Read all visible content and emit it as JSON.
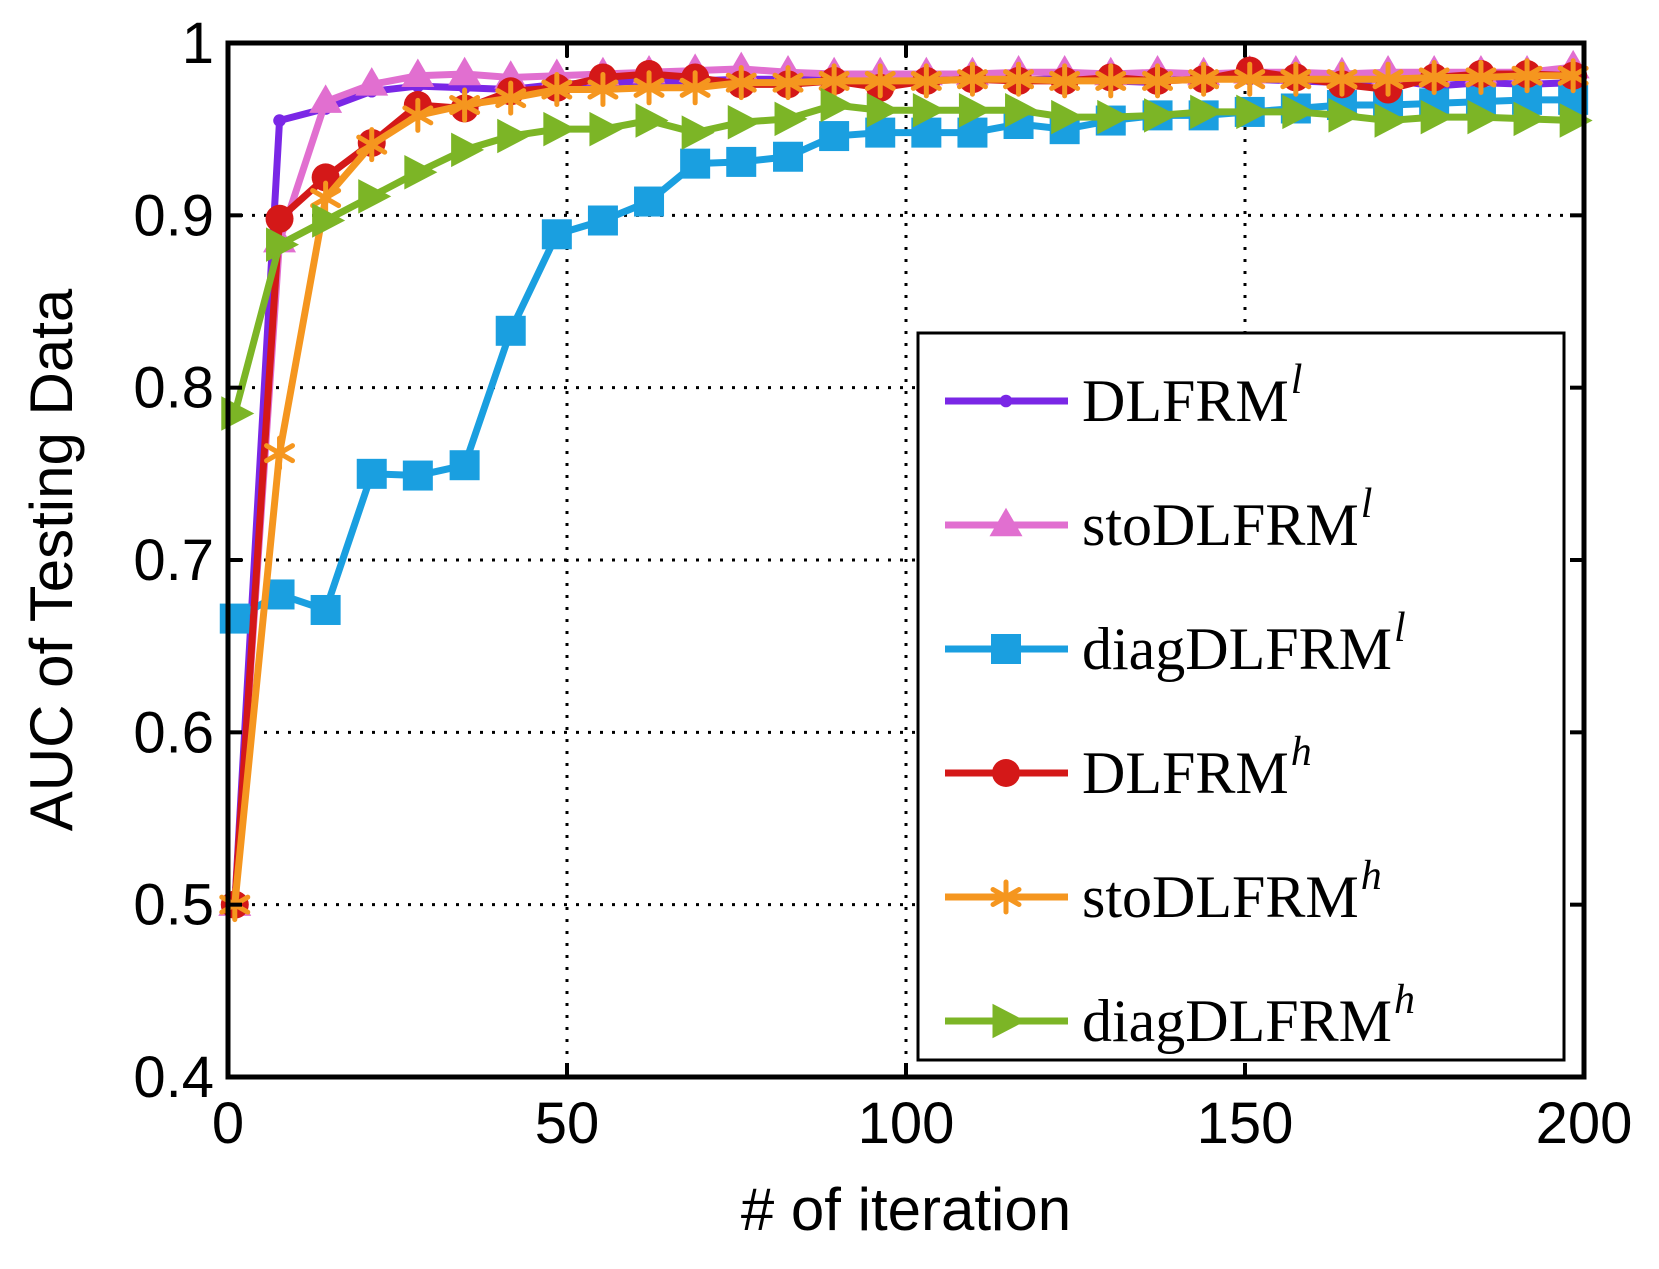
{
  "chart_data": {
    "type": "line",
    "title": "",
    "xlabel": "# of iteration",
    "ylabel": "AUC of Testing Data",
    "xlim": [
      0,
      200
    ],
    "ylim": [
      0.4,
      1.0
    ],
    "xticks": [
      0,
      50,
      100,
      150,
      200
    ],
    "xtick_labels": [
      "0",
      "50",
      "100",
      "150",
      "200"
    ],
    "yticks": [
      0.4,
      0.5,
      0.6,
      0.7,
      0.8,
      0.9,
      1.0
    ],
    "ytick_labels": [
      "0.4",
      "0.5",
      "0.6",
      "0.7",
      "0.8",
      "0.9",
      "1"
    ],
    "grid": true,
    "legend_position": "lower-right",
    "x": [
      1,
      7.6,
      14.4,
      21.2,
      28,
      34.9,
      41.7,
      48.5,
      55.3,
      62.1,
      68.9,
      75.7,
      82.6,
      89.4,
      96.2,
      103,
      109.8,
      116.6,
      123.4,
      130.2,
      137.1,
      143.9,
      150.7,
      157.5,
      164.3,
      171.1,
      177.9,
      184.8,
      191.6,
      198.4
    ],
    "series": [
      {
        "name": "DLFRM",
        "sup": "l",
        "color": "#7a27e6",
        "marker": "dot",
        "values": [
          0.5,
          0.955,
          0.962,
          0.972,
          0.975,
          0.974,
          0.973,
          0.976,
          0.977,
          0.978,
          0.978,
          0.979,
          0.979,
          0.979,
          0.979,
          0.978,
          0.98,
          0.978,
          0.98,
          0.978,
          0.977,
          0.982,
          0.979,
          0.978,
          0.977,
          0.979,
          0.975,
          0.977,
          0.976,
          0.977
        ]
      },
      {
        "name": "stoDLFRM",
        "sup": "l",
        "color": "#e16fd0",
        "marker": "triangle-up",
        "values": [
          0.5,
          0.885,
          0.966,
          0.976,
          0.981,
          0.982,
          0.98,
          0.981,
          0.982,
          0.983,
          0.984,
          0.985,
          0.983,
          0.982,
          0.982,
          0.982,
          0.982,
          0.983,
          0.983,
          0.982,
          0.983,
          0.982,
          0.983,
          0.983,
          0.982,
          0.983,
          0.983,
          0.983,
          0.983,
          0.986
        ]
      },
      {
        "name": "diagDLFRM",
        "sup": "l",
        "color": "#1a9fe0",
        "marker": "square",
        "values": [
          0.666,
          0.68,
          0.671,
          0.75,
          0.749,
          0.755,
          0.833,
          0.889,
          0.897,
          0.908,
          0.93,
          0.931,
          0.934,
          0.946,
          0.948,
          0.948,
          0.948,
          0.953,
          0.95,
          0.955,
          0.958,
          0.958,
          0.96,
          0.962,
          0.964,
          0.964,
          0.965,
          0.966,
          0.967,
          0.967
        ]
      },
      {
        "name": "DLFRM",
        "sup": "h",
        "color": "#d41818",
        "marker": "circle",
        "values": [
          0.5,
          0.898,
          0.922,
          0.942,
          0.964,
          0.962,
          0.972,
          0.974,
          0.98,
          0.982,
          0.98,
          0.976,
          0.976,
          0.978,
          0.974,
          0.978,
          0.979,
          0.978,
          0.978,
          0.98,
          0.978,
          0.979,
          0.984,
          0.98,
          0.976,
          0.973,
          0.98,
          0.982,
          0.982,
          0.981
        ]
      },
      {
        "name": "stoDLFRM",
        "sup": "h",
        "color": "#f5961f",
        "marker": "asterisk",
        "values": [
          0.5,
          0.762,
          0.91,
          0.941,
          0.958,
          0.964,
          0.968,
          0.973,
          0.973,
          0.974,
          0.974,
          0.977,
          0.977,
          0.978,
          0.978,
          0.978,
          0.979,
          0.979,
          0.978,
          0.978,
          0.978,
          0.979,
          0.979,
          0.979,
          0.979,
          0.979,
          0.98,
          0.98,
          0.981,
          0.981
        ]
      },
      {
        "name": "diagDLFRM",
        "sup": "h",
        "color": "#7cb526",
        "marker": "triangle-right",
        "values": [
          0.785,
          0.883,
          0.897,
          0.911,
          0.925,
          0.938,
          0.946,
          0.95,
          0.95,
          0.955,
          0.948,
          0.954,
          0.956,
          0.964,
          0.961,
          0.961,
          0.961,
          0.961,
          0.957,
          0.957,
          0.958,
          0.96,
          0.96,
          0.96,
          0.958,
          0.955,
          0.957,
          0.957,
          0.956,
          0.955
        ]
      }
    ]
  }
}
